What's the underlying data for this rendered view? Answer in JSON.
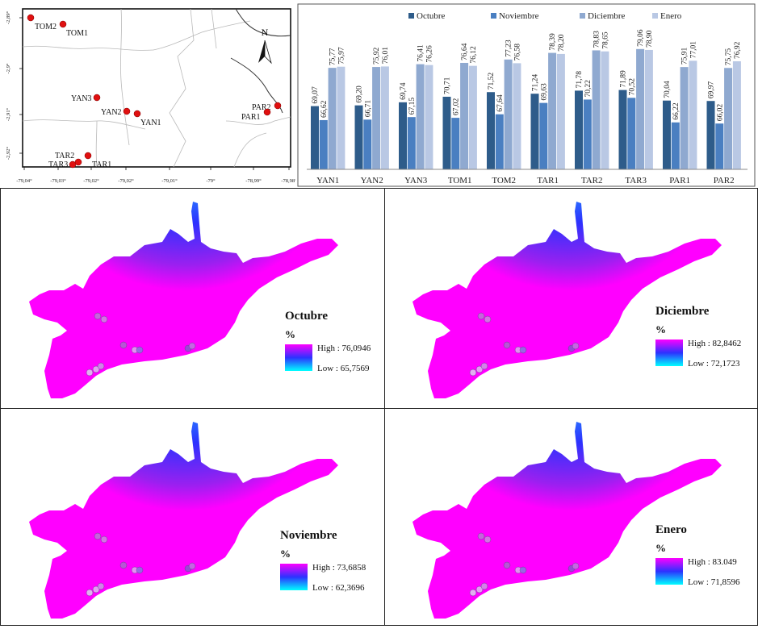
{
  "colors": {
    "octubre": "#2e5c8a",
    "noviembre": "#4a7fc1",
    "diciembre": "#8fa9d0",
    "enero": "#b9c8e4",
    "map_point": "#e01010",
    "heat_high": "#ff00ff",
    "heat_mid": "#2c32ff",
    "heat_low": "#00ffff"
  },
  "location_map": {
    "north_label": "N",
    "x_ticks": [
      "-79,04°",
      "-79,03°",
      "-79,02°",
      "-79,02°",
      "-79,01°",
      "-79°",
      "-78,99°",
      "-78,98°"
    ],
    "y_ticks": [
      "-2,89°",
      "-2,9°",
      "-2,91°",
      "-2,92°"
    ],
    "stations": [
      {
        "label": "TOM2"
      },
      {
        "label": "TOM1"
      },
      {
        "label": "YAN3"
      },
      {
        "label": "YAN2"
      },
      {
        "label": "YAN1"
      },
      {
        "label": "PAR2"
      },
      {
        "label": "PAR1"
      },
      {
        "label": "TAR2"
      },
      {
        "label": "TAR3"
      },
      {
        "label": "TAR1"
      }
    ]
  },
  "chart_data": [
    {
      "type": "bar",
      "categories": [
        "YAN1",
        "YAN2",
        "YAN3",
        "TOM1",
        "TOM2",
        "TAR1",
        "TAR2",
        "TAR3",
        "PAR1",
        "PAR2"
      ],
      "series": [
        {
          "name": "Octubre",
          "values": [
            69.07,
            69.2,
            69.74,
            70.71,
            71.52,
            71.24,
            71.78,
            71.89,
            70.04,
            69.97
          ]
        },
        {
          "name": "Noviembre",
          "values": [
            66.62,
            66.71,
            67.15,
            67.02,
            67.64,
            69.63,
            70.22,
            70.52,
            66.22,
            66.02
          ]
        },
        {
          "name": "Diciembre",
          "values": [
            75.77,
            75.92,
            76.41,
            76.64,
            77.23,
            78.39,
            78.83,
            79.06,
            75.91,
            75.75
          ]
        },
        {
          "name": "Enero",
          "values": [
            75.97,
            76.01,
            76.26,
            76.12,
            76.58,
            78.2,
            78.65,
            78.9,
            77.01,
            76.92
          ]
        }
      ],
      "value_labels": [
        [
          "69,07",
          "69,20",
          "69,74",
          "70,71",
          "71,52",
          "71,24",
          "71,78",
          "71,89",
          "70,04",
          "69,97"
        ],
        [
          "66,62",
          "66,71",
          "67,15",
          "67,02",
          "67,64",
          "69,63",
          "70,22",
          "70,52",
          "66,22",
          "66,02"
        ],
        [
          "75,77",
          "75,92",
          "76,41",
          "76,64",
          "77,23",
          "78,39",
          "78,83",
          "79,06",
          "75,91",
          "75,75"
        ],
        [
          "75,97",
          "76,01",
          "76,26",
          "76,12",
          "76,58",
          "78,20",
          "78,65",
          "78,90",
          "77,01",
          "76,92"
        ]
      ],
      "ylim": [
        58,
        82
      ],
      "legend_position": "top"
    }
  ],
  "heatmaps": [
    {
      "id": "oct",
      "title": "Octubre",
      "unit": "%",
      "high_label": "High : 76,0946",
      "low_label": "Low : 65,7569"
    },
    {
      "id": "dic",
      "title": "Diciembre",
      "unit": "%",
      "high_label": "High : 82,8462",
      "low_label": "Low : 72,1723"
    },
    {
      "id": "nov",
      "title": "Noviembre",
      "unit": "%",
      "high_label": "High : 73,6858",
      "low_label": "Low : 62,3696"
    },
    {
      "id": "ene",
      "title": "Enero",
      "unit": "%",
      "high_label": "High : 83.049",
      "low_label": "Low : 71,8596"
    }
  ]
}
